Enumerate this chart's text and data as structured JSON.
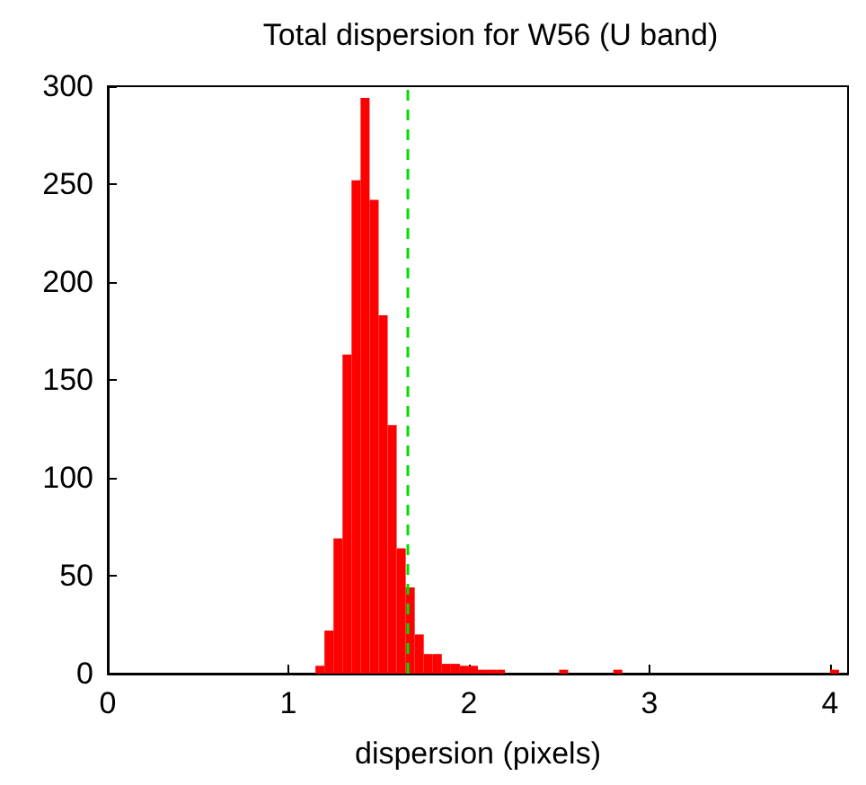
{
  "chart_data": {
    "type": "histogram",
    "title": "Total dispersion for W56 (U band)",
    "xlabel": "dispersion (pixels)",
    "bins": [
      1.15,
      1.2,
      1.25,
      1.3,
      1.35,
      1.4,
      1.45,
      1.5,
      1.55,
      1.6,
      1.65,
      1.7,
      1.75,
      1.8,
      1.85,
      1.9,
      1.95,
      2.0,
      2.05,
      2.1,
      2.15,
      2.2,
      2.25,
      2.3,
      2.35,
      2.4,
      2.45,
      2.5,
      2.55,
      2.6,
      2.65,
      2.7,
      2.75,
      2.8,
      2.85,
      2.9,
      2.95,
      3.0,
      3.05,
      3.1,
      3.15,
      3.2,
      3.25,
      3.3,
      3.35,
      3.4,
      3.45,
      3.5,
      3.55,
      3.6,
      3.65,
      3.7,
      3.75,
      3.8,
      3.85,
      3.9,
      3.95,
      4.0,
      4.05
    ],
    "values": [
      4,
      22,
      69,
      163,
      252,
      294,
      242,
      183,
      127,
      64,
      44,
      20,
      10,
      10,
      5,
      5,
      4,
      4,
      2,
      2,
      2,
      0,
      0,
      0,
      0,
      0,
      0,
      2,
      0,
      0,
      0,
      0,
      0,
      2,
      0,
      0,
      0,
      0,
      0,
      0,
      0,
      0,
      0,
      0,
      0,
      0,
      0,
      0,
      0,
      0,
      0,
      0,
      0,
      0,
      0,
      0,
      0,
      2
    ],
    "color": "#ff0000",
    "xlim": [
      0,
      4.1
    ],
    "xticks": [
      0,
      1,
      2,
      3,
      4
    ],
    "ylim": [
      0,
      300
    ],
    "yticks": [
      0,
      50,
      100,
      150,
      200,
      250,
      300
    ],
    "ref_lines": [
      {
        "axis": "x",
        "value": 1.66,
        "color": "#00dd00",
        "line_style": "dashed"
      }
    ],
    "grid": false
  }
}
